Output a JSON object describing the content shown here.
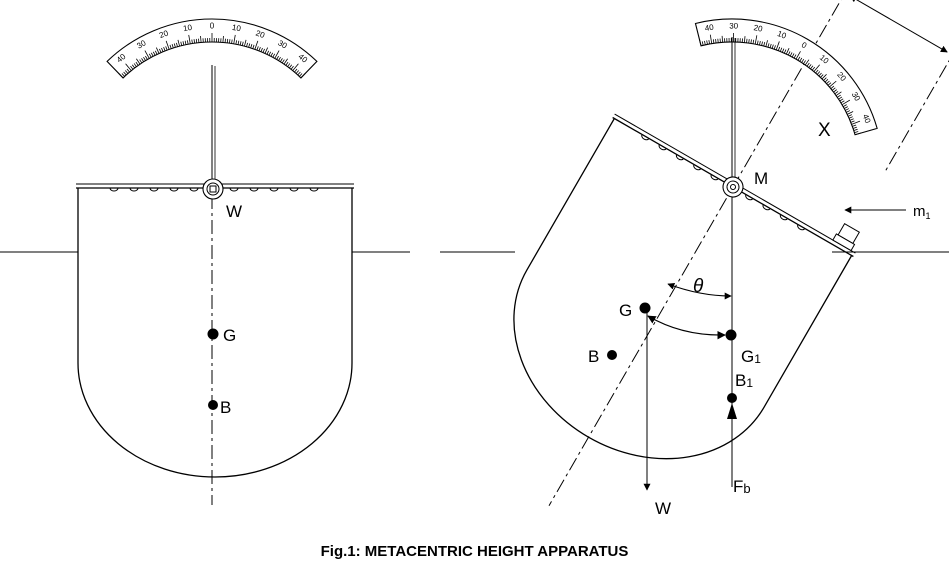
{
  "caption": "Fig.1: METACENTRIC HEIGHT APPARATUS",
  "scale_ticks": [
    "40",
    "30",
    "20",
    "10",
    "0",
    "10",
    "20",
    "30",
    "40"
  ],
  "left_view": {
    "labels": {
      "w": "W",
      "g": "G",
      "b": "B"
    }
  },
  "right_view": {
    "labels": {
      "m": "M",
      "x": "X",
      "m1": "m",
      "m1_sub": "1",
      "theta": "θ",
      "g": "G",
      "g1": "G",
      "g1_sub": "1",
      "b": "B",
      "b1": "B",
      "b1_sub": "1",
      "w": "W",
      "fb": "F",
      "fb_sub": "b"
    }
  }
}
